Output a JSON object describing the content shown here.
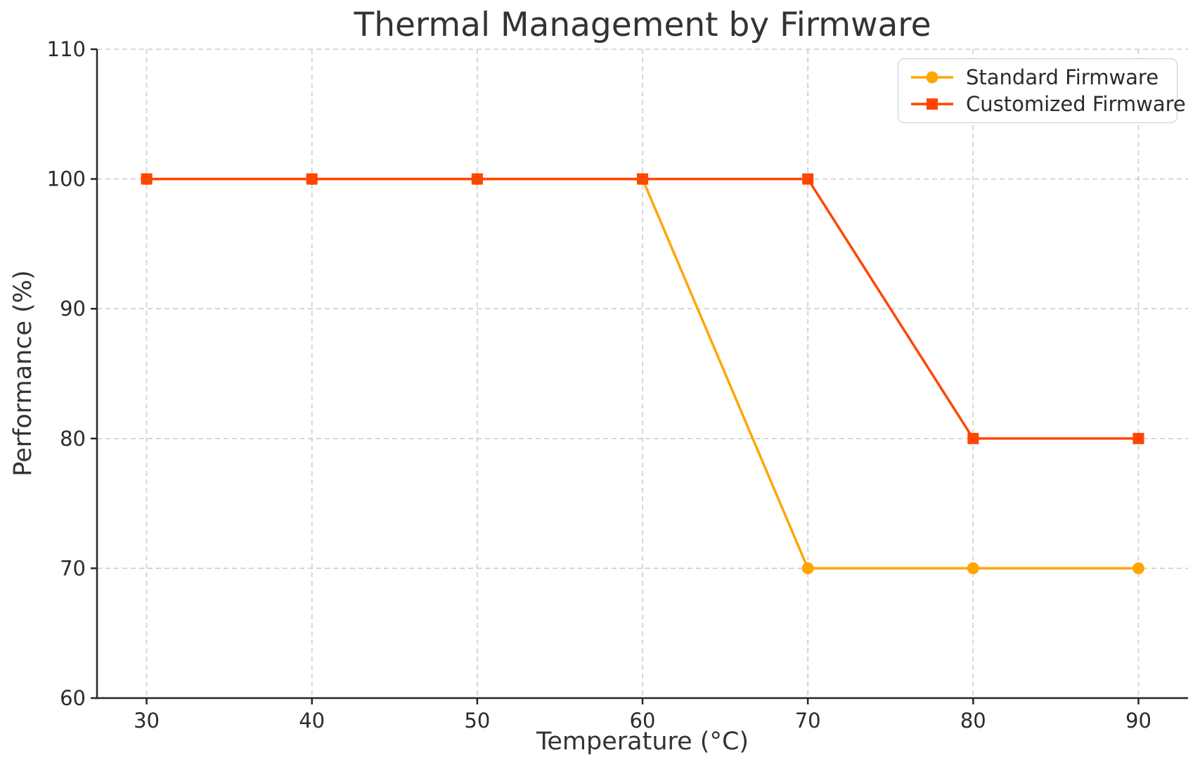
{
  "chart_data": {
    "type": "line",
    "title": "Thermal Management by Firmware",
    "xlabel": "Temperature (°C)",
    "ylabel": "Performance (%)",
    "x": [
      30,
      40,
      50,
      60,
      70,
      80,
      90
    ],
    "series": [
      {
        "name": "Standard Firmware",
        "values": [
          100,
          100,
          100,
          100,
          70,
          70,
          70
        ],
        "color": "#FFA500",
        "marker": "circle"
      },
      {
        "name": "Customized Firmware",
        "values": [
          100,
          100,
          100,
          100,
          100,
          80,
          80
        ],
        "color": "#FF4500",
        "marker": "square"
      }
    ],
    "xlim": [
      27,
      93
    ],
    "ylim": [
      60,
      110
    ],
    "xticks": [
      30,
      40,
      50,
      60,
      70,
      80,
      90
    ],
    "yticks": [
      60,
      70,
      80,
      90,
      100,
      110
    ],
    "grid": true,
    "grid_style": "dashed",
    "grid_color": "#cccccc",
    "spine_color": "#262626",
    "text_color": "#2b2b2b",
    "title_color": "#333333",
    "legend_position": "upper right",
    "legend_labels": [
      "Standard Firmware",
      "Customized Firmware"
    ]
  }
}
